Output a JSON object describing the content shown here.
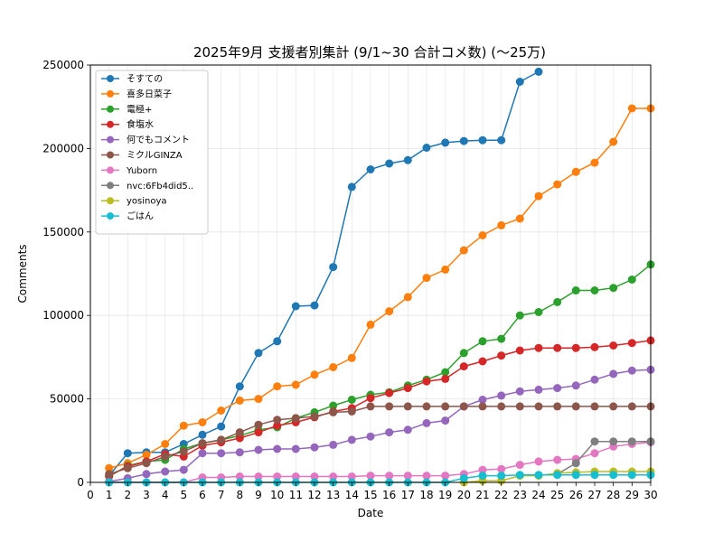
{
  "chart_data": {
    "type": "line",
    "title": "2025年9月 支援者別集計 (9/1~30 合計コメ数) (〜25万)",
    "xlabel": "Date",
    "ylabel": "Comments",
    "xlim": [
      0,
      30
    ],
    "ylim": [
      0,
      250000
    ],
    "x_ticks": [
      "0",
      "1",
      "2",
      "3",
      "4",
      "5",
      "6",
      "7",
      "8",
      "9",
      "10",
      "11",
      "12",
      "13",
      "14",
      "15",
      "16",
      "17",
      "18",
      "19",
      "20",
      "21",
      "22",
      "23",
      "24",
      "25",
      "26",
      "27",
      "28",
      "29",
      "30"
    ],
    "y_ticks": [
      "0",
      "50000",
      "100000",
      "150000",
      "200000",
      "250000"
    ],
    "grid": true,
    "legend_position": "upper-left",
    "series": [
      {
        "name": "そすての",
        "color": "#1f77b4",
        "x": [
          1,
          2,
          3,
          4,
          5,
          6,
          7,
          8,
          9,
          10,
          11,
          12,
          13,
          14,
          15,
          16,
          17,
          18,
          19,
          20,
          21,
          22,
          23,
          24
        ],
        "values": [
          4000,
          17500,
          18000,
          18000,
          23000,
          28500,
          33500,
          57500,
          77500,
          84500,
          105500,
          106000,
          129000,
          177000,
          187500,
          191000,
          193000,
          200500,
          203500,
          204500,
          205000,
          205000,
          240000,
          246000
        ]
      },
      {
        "name": "喜多日菜子",
        "color": "#ff7f0e",
        "x": [
          1,
          2,
          3,
          4,
          5,
          6,
          7,
          8,
          9,
          10,
          11,
          12,
          13,
          14,
          15,
          16,
          17,
          18,
          19,
          20,
          21,
          22,
          23,
          24,
          25,
          26,
          27,
          28,
          29,
          30
        ],
        "values": [
          8500,
          11500,
          16500,
          23000,
          34000,
          36000,
          43000,
          49000,
          50000,
          57500,
          58500,
          64500,
          69000,
          74500,
          94500,
          102500,
          111000,
          122500,
          127500,
          139000,
          148000,
          154000,
          158000,
          171500,
          178500,
          186000,
          191500,
          204000,
          224000,
          224000
        ]
      },
      {
        "name": "電極+",
        "color": "#2ca02c",
        "x": [
          1,
          2,
          3,
          4,
          5,
          6,
          7,
          8,
          9,
          10,
          11,
          12,
          13,
          14,
          15,
          16,
          17,
          18,
          19,
          20,
          21,
          22,
          23,
          24,
          25,
          26,
          27,
          28,
          29,
          30
        ],
        "values": [
          3500,
          10000,
          12500,
          13500,
          20000,
          23500,
          25500,
          28000,
          31500,
          33000,
          38500,
          42000,
          46000,
          49500,
          52500,
          54000,
          58000,
          61500,
          66000,
          77500,
          84500,
          86000,
          100000,
          102000,
          108000,
          115000,
          115000,
          116500,
          121500,
          130500
        ]
      },
      {
        "name": "食塩水",
        "color": "#d62728",
        "x": [
          1,
          2,
          3,
          4,
          5,
          6,
          7,
          8,
          9,
          10,
          11,
          12,
          13,
          14,
          15,
          16,
          17,
          18,
          19,
          20,
          21,
          22,
          23,
          24,
          25,
          26,
          27,
          28,
          29,
          30
        ],
        "values": [
          4000,
          9500,
          12500,
          17000,
          15500,
          22000,
          24000,
          26500,
          30000,
          34000,
          36000,
          39000,
          42500,
          44500,
          50500,
          53500,
          56500,
          60500,
          62000,
          69500,
          72500,
          76000,
          79000,
          80500,
          80500,
          80500,
          81000,
          82000,
          83500,
          85000
        ]
      },
      {
        "name": "何でもコメント",
        "color": "#9467bd",
        "x": [
          1,
          2,
          3,
          4,
          5,
          6,
          7,
          8,
          9,
          10,
          11,
          12,
          13,
          14,
          15,
          16,
          17,
          18,
          19,
          20,
          21,
          22,
          23,
          24,
          25,
          26,
          27,
          28,
          29,
          30
        ],
        "values": [
          500,
          2500,
          5000,
          6500,
          7500,
          17500,
          17500,
          18000,
          19500,
          20000,
          20000,
          21000,
          22500,
          25500,
          27500,
          30000,
          31500,
          35500,
          37000,
          45500,
          49500,
          52000,
          54500,
          55500,
          56500,
          58000,
          61500,
          65000,
          67000,
          67500
        ]
      },
      {
        "name": "ミクルGINZA",
        "color": "#8c564b",
        "x": [
          1,
          2,
          3,
          4,
          5,
          6,
          7,
          8,
          9,
          10,
          11,
          12,
          13,
          14,
          15,
          16,
          17,
          18,
          19,
          20,
          21,
          22,
          23,
          24,
          25,
          26,
          27,
          28,
          29,
          30
        ],
        "values": [
          5000,
          8500,
          11500,
          15500,
          18500,
          23500,
          25500,
          30000,
          34500,
          37500,
          38500,
          39500,
          42000,
          42500,
          45500,
          45500,
          45500,
          45500,
          45500,
          45500,
          45500,
          45500,
          45500,
          45500,
          45500,
          45500,
          45500,
          45500,
          45500,
          45500
        ]
      },
      {
        "name": "Yuborn",
        "color": "#e377c2",
        "x": [
          1,
          2,
          3,
          4,
          5,
          6,
          7,
          8,
          9,
          10,
          11,
          12,
          13,
          14,
          15,
          16,
          17,
          18,
          19,
          20,
          21,
          22,
          23,
          24,
          25,
          26,
          27,
          28,
          29,
          30
        ],
        "values": [
          0,
          0,
          0,
          0,
          0,
          3000,
          3000,
          3500,
          3500,
          3500,
          3500,
          3500,
          3500,
          3500,
          4000,
          4000,
          4000,
          4000,
          4000,
          5000,
          7500,
          8000,
          10500,
          12500,
          13500,
          14000,
          17500,
          21500,
          23000,
          24000
        ]
      },
      {
        "name": "nvc:6Fb4did5..",
        "color": "#7f7f7f",
        "x": [
          25,
          26,
          27,
          28,
          29,
          30
        ],
        "values": [
          5000,
          11500,
          24500,
          24500,
          24500,
          24500
        ]
      },
      {
        "name": "yosinoya",
        "color": "#bcbd22",
        "x": [
          20,
          21,
          22,
          23,
          24,
          25,
          26,
          27,
          28,
          29,
          30
        ],
        "values": [
          0,
          1000,
          1000,
          4000,
          4000,
          5500,
          6000,
          6500,
          6500,
          6500,
          6500
        ]
      },
      {
        "name": "ごはん",
        "color": "#17becf",
        "x": [
          1,
          2,
          3,
          4,
          5,
          6,
          7,
          8,
          9,
          10,
          11,
          12,
          13,
          14,
          15,
          16,
          17,
          18,
          19,
          20,
          21,
          22,
          23,
          24,
          25,
          26,
          27,
          28,
          29,
          30
        ],
        "values": [
          0,
          0,
          0,
          0,
          0,
          0,
          0,
          0,
          0,
          0,
          0,
          0,
          0,
          0,
          0,
          0,
          0,
          0,
          0,
          2500,
          4000,
          4000,
          4500,
          4500,
          4500,
          4500,
          4500,
          4500,
          4500,
          4500
        ]
      }
    ]
  }
}
